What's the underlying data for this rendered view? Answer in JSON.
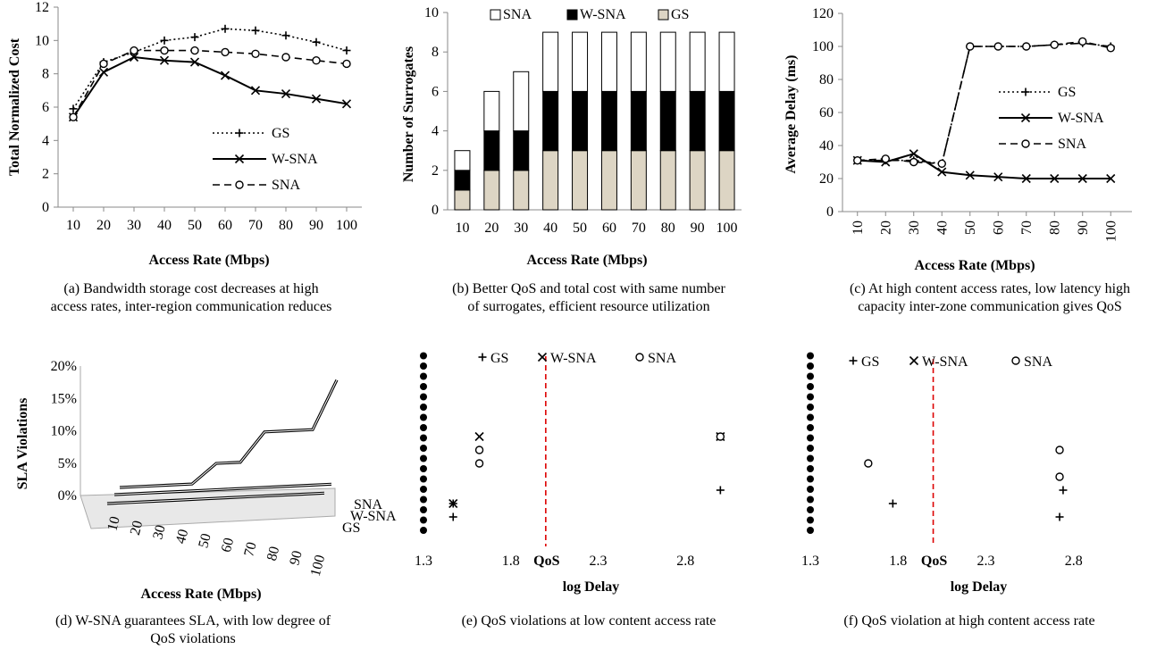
{
  "chart_data": [
    {
      "panel": "a",
      "type": "line",
      "ylabel": "Total Normalized Cost",
      "xlabel": "Access Rate (Mbps)",
      "caption": [
        "(a) Bandwidth storage cost decreases at high",
        "access rates, inter-region communication reduces"
      ],
      "x": [
        10,
        20,
        30,
        40,
        50,
        60,
        70,
        80,
        90,
        100
      ],
      "xticks": [
        "10",
        "20",
        "30",
        "40",
        "50",
        "60",
        "70",
        "80",
        "90",
        "100"
      ],
      "ylim": [
        0,
        12
      ],
      "yticks": [
        "0",
        "2",
        "4",
        "6",
        "8",
        "10",
        "12"
      ],
      "legend_position": "bottom-right",
      "series": [
        {
          "name": "GS",
          "marker": "+",
          "dash": "dotted",
          "values": [
            5.9,
            8.7,
            9.3,
            10.0,
            10.2,
            10.7,
            10.6,
            10.3,
            9.9,
            9.4
          ]
        },
        {
          "name": "W-SNA",
          "marker": "x",
          "dash": "solid",
          "values": [
            5.4,
            8.1,
            9.0,
            8.8,
            8.7,
            7.9,
            7.0,
            6.8,
            6.5,
            6.2
          ]
        },
        {
          "name": "SNA",
          "marker": "o",
          "dash": "dashed",
          "values": [
            5.4,
            8.6,
            9.4,
            9.4,
            9.4,
            9.3,
            9.2,
            9.0,
            8.8,
            8.6
          ]
        }
      ]
    },
    {
      "panel": "b",
      "type": "bar",
      "stacked": true,
      "ylabel": "Number of Surrogates",
      "xlabel": "Access Rate (Mbps)",
      "caption": [
        "(b) Better QoS and total cost with same number",
        "of surrogates, efficient resource utilization"
      ],
      "categories": [
        "10",
        "20",
        "30",
        "40",
        "50",
        "60",
        "70",
        "80",
        "90",
        "100"
      ],
      "ylim": [
        0,
        10
      ],
      "yticks": [
        "0",
        "2",
        "4",
        "6",
        "8",
        "10"
      ],
      "legend_position": "top",
      "series": [
        {
          "name": "GS",
          "color": "#ddd5c4",
          "values": [
            1,
            2,
            2,
            3,
            3,
            3,
            3,
            3,
            3,
            3
          ]
        },
        {
          "name": "W-SNA",
          "color": "#000000",
          "values": [
            1,
            2,
            2,
            3,
            3,
            3,
            3,
            3,
            3,
            3
          ]
        },
        {
          "name": "SNA",
          "color": "#ffffff",
          "values": [
            1,
            2,
            3,
            3,
            3,
            3,
            3,
            3,
            3,
            3
          ]
        }
      ],
      "legend_order": [
        "SNA",
        "W-SNA",
        "GS"
      ]
    },
    {
      "panel": "c",
      "type": "line",
      "ylabel": "Average Delay (ms)",
      "xlabel": "Access Rate (Mbps)",
      "caption": [
        "(c) At high content access rates, low latency high",
        "capacity inter-zone communication gives QoS"
      ],
      "x": [
        10,
        20,
        30,
        40,
        50,
        60,
        70,
        80,
        90,
        100
      ],
      "xticks": [
        "10",
        "20",
        "30",
        "40",
        "50",
        "60",
        "70",
        "80",
        "90",
        "100"
      ],
      "ylim": [
        0,
        120
      ],
      "yticks": [
        "0",
        "20",
        "40",
        "60",
        "80",
        "100",
        "120"
      ],
      "legend_position": "right",
      "series": [
        {
          "name": "GS",
          "marker": "+",
          "dash": "dotted",
          "values": [
            31,
            31,
            31,
            29,
            100,
            100,
            100,
            101,
            102,
            100
          ]
        },
        {
          "name": "W-SNA",
          "marker": "x",
          "dash": "solid",
          "values": [
            31,
            30,
            35,
            24,
            22,
            21,
            20,
            20,
            20,
            20
          ]
        },
        {
          "name": "SNA",
          "marker": "o",
          "dash": "dashed",
          "values": [
            31,
            32,
            30,
            29,
            100,
            100,
            100,
            101,
            103,
            99
          ]
        }
      ]
    },
    {
      "panel": "d",
      "type": "line",
      "view": "3d",
      "ylabel": "SLA Violations",
      "xlabel": "Access Rate (Mbps)",
      "caption": [
        "(d) W-SNA guarantees SLA, with low degree of",
        "QoS violations"
      ],
      "x": [
        10,
        20,
        30,
        40,
        50,
        60,
        70,
        80,
        90,
        100
      ],
      "xticks": [
        "10",
        "20",
        "30",
        "40",
        "50",
        "60",
        "70",
        "80",
        "90",
        "100"
      ],
      "ylim": [
        0,
        20
      ],
      "yticks": [
        "0%",
        "5%",
        "10%",
        "15%",
        "20%"
      ],
      "depth_labels": [
        "SNA",
        "W-SNA",
        "GS"
      ],
      "series": [
        {
          "name": "GS",
          "values": [
            0,
            0,
            0,
            0,
            0,
            0,
            0,
            0,
            0,
            0
          ]
        },
        {
          "name": "W-SNA",
          "values": [
            0,
            0,
            0,
            0,
            0,
            0,
            0,
            0,
            0,
            0
          ]
        },
        {
          "name": "SNA",
          "values": [
            0,
            0,
            0,
            0,
            3,
            3,
            7.5,
            7.5,
            7.5,
            15
          ]
        }
      ]
    },
    {
      "panel": "e",
      "type": "scatter",
      "xlabel": "log Delay",
      "caption": [
        "(e) QoS violations at low content access rate"
      ],
      "xticks": [
        "1.3",
        "1.8",
        "2.3",
        "2.8"
      ],
      "xtick_values": [
        1.3,
        1.8,
        2.3,
        2.8
      ],
      "xlim": [
        1.3,
        3.3
      ],
      "qos_line": {
        "x": 2.0,
        "label": "QoS"
      },
      "legend_position": "top",
      "points": [
        {
          "series": "GS",
          "marker": "+",
          "x": 1.47,
          "y": 1
        },
        {
          "series": "GS",
          "marker": "+",
          "x": 1.47,
          "y": 2
        },
        {
          "series": "GS",
          "marker": "+",
          "x": 3.0,
          "y": 3
        },
        {
          "series": "W-SNA",
          "marker": "x",
          "x": 1.47,
          "y": 2
        },
        {
          "series": "W-SNA",
          "marker": "x",
          "x": 1.62,
          "y": 7
        },
        {
          "series": "W-SNA",
          "marker": "x",
          "x": 3.0,
          "y": 7
        },
        {
          "series": "SNA",
          "marker": "o",
          "x": 1.62,
          "y": 5
        },
        {
          "series": "SNA",
          "marker": "o",
          "x": 1.62,
          "y": 6
        },
        {
          "series": "SNA",
          "marker": "o",
          "x": 3.0,
          "y": 7
        }
      ]
    },
    {
      "panel": "f",
      "type": "scatter",
      "xlabel": "log Delay",
      "caption": [
        "(f) QoS violation at high content access rate"
      ],
      "xticks": [
        "1.3",
        "1.8",
        "2.3",
        "2.8"
      ],
      "xtick_values": [
        1.3,
        1.8,
        2.3,
        2.8
      ],
      "xlim": [
        1.3,
        3.3
      ],
      "qos_line": {
        "x": 2.0,
        "label": "QoS"
      },
      "legend_position": "top",
      "points": [
        {
          "series": "GS",
          "marker": "+",
          "x": 1.77,
          "y": 2
        },
        {
          "series": "GS",
          "marker": "+",
          "x": 2.72,
          "y": 1
        },
        {
          "series": "GS",
          "marker": "+",
          "x": 2.74,
          "y": 3
        },
        {
          "series": "SNA",
          "marker": "o",
          "x": 1.63,
          "y": 5
        },
        {
          "series": "SNA",
          "marker": "o",
          "x": 2.72,
          "y": 4
        },
        {
          "series": "SNA",
          "marker": "o",
          "x": 2.72,
          "y": 6
        }
      ]
    }
  ]
}
